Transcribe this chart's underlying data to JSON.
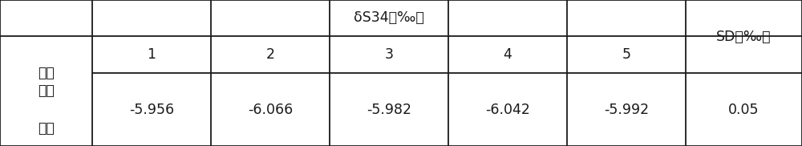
{
  "title_row1": "δS34（‰）",
  "title_row2_cols": [
    "1",
    "2",
    "3",
    "4",
    "5"
  ],
  "header_col": "样品",
  "sd_header": "SD（‰）",
  "data_row_label_line1": "湿地",
  "data_row_label_line2": "植物",
  "data_values": [
    "-5.956",
    "-6.066",
    "-5.982",
    "-6.042",
    "-5.992"
  ],
  "sd_value": "0.05",
  "bg_color": "#ffffff",
  "line_color": "#1a1a1a",
  "text_color": "#1a1a1a",
  "font_size": 12.5,
  "col_bounds": [
    0.0,
    0.115,
    0.263,
    0.411,
    0.559,
    0.707,
    0.855,
    1.0
  ],
  "row_bounds": [
    0.0,
    0.5,
    0.755,
    1.0
  ]
}
